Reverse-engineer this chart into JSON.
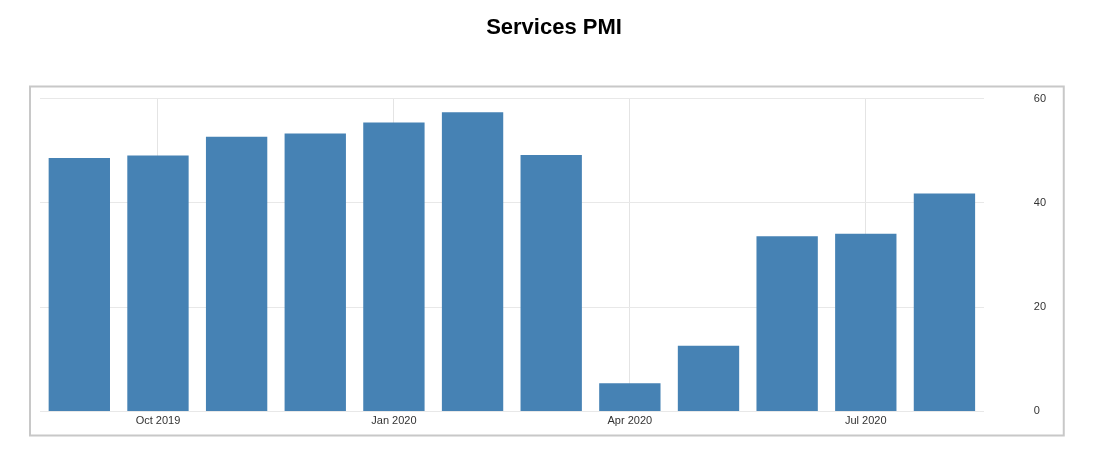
{
  "chart_data": {
    "type": "bar",
    "title": "Services PMI",
    "categories": [
      null,
      "Oct 2019",
      null,
      null,
      "Jan 2020",
      null,
      null,
      "Apr 2020",
      null,
      null,
      "Jul 2020",
      null
    ],
    "values": [
      48.6,
      49.1,
      52.7,
      53.3,
      55.4,
      57.4,
      49.2,
      5.4,
      12.6,
      33.6,
      34.1,
      41.8
    ],
    "color": "#4682b4",
    "ylim": [
      0,
      60
    ],
    "yticks": [
      0,
      20,
      40,
      60
    ],
    "grid": true
  }
}
